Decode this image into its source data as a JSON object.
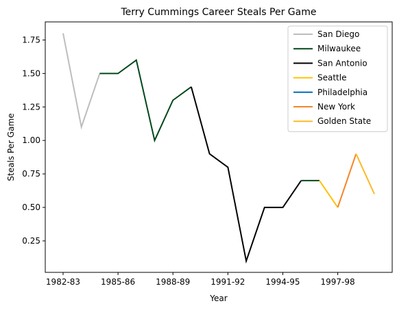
{
  "chart_data": {
    "type": "line",
    "title": "Terry Cummings Career Steals Per Game",
    "xlabel": "Year",
    "ylabel": "Steals Per Game",
    "x_tick_labels": [
      "1982-83",
      "1985-86",
      "1988-89",
      "1991-92",
      "1994-95",
      "1997-98"
    ],
    "y_tick_labels": [
      "0.25",
      "0.50",
      "0.75",
      "1.00",
      "1.25",
      "1.50",
      "1.75"
    ],
    "y_ticks": [
      0.25,
      0.5,
      0.75,
      1.0,
      1.25,
      1.5,
      1.75
    ],
    "ylim": [
      0.015,
      1.885
    ],
    "legend_position": "top-right",
    "grid": false,
    "series": [
      {
        "name": "San Diego",
        "color": "#bdbdbd",
        "x": [
          "1982-83",
          "1983-84",
          "1984-85"
        ],
        "values": [
          1.8,
          1.1,
          1.5
        ]
      },
      {
        "name": "Milwaukee",
        "color": "#00471b",
        "x": [
          "1984-85",
          "1985-86",
          "1986-87",
          "1987-88",
          "1988-89",
          "1989-90"
        ],
        "values": [
          1.5,
          1.5,
          1.6,
          1.0,
          1.3,
          1.4
        ]
      },
      {
        "name": "San Antonio",
        "color": "#000000",
        "x": [
          "1989-90",
          "1990-91",
          "1991-92",
          "1992-93",
          "1993-94",
          "1994-95",
          "1995-96"
        ],
        "values": [
          1.4,
          0.9,
          0.8,
          0.1,
          0.5,
          0.5,
          0.7
        ]
      },
      {
        "name": "Milwaukee",
        "color": "#00471b",
        "x": [
          "1995-96",
          "1996-97"
        ],
        "values": [
          0.7,
          0.7
        ],
        "legend": false
      },
      {
        "name": "Seattle",
        "color": "#ffc200",
        "x": [
          "1996-97",
          "1997-98"
        ],
        "values": [
          0.7,
          0.5
        ]
      },
      {
        "name": "Philadelphia",
        "color": "#006bb6",
        "x": [],
        "values": []
      },
      {
        "name": "New York",
        "color": "#f58426",
        "x": [
          "1997-98",
          "1998-99"
        ],
        "values": [
          0.5,
          0.9
        ]
      },
      {
        "name": "Golden State",
        "color": "#fdb927",
        "x": [
          "1998-99",
          "1999-00"
        ],
        "values": [
          0.9,
          0.6
        ]
      }
    ],
    "x_categories": [
      "1982-83",
      "1983-84",
      "1984-85",
      "1985-86",
      "1986-87",
      "1987-88",
      "1988-89",
      "1989-90",
      "1990-91",
      "1991-92",
      "1992-93",
      "1993-94",
      "1994-95",
      "1995-96",
      "1996-97",
      "1997-98",
      "1998-99",
      "1999-00"
    ],
    "x_tick_every": 3
  }
}
